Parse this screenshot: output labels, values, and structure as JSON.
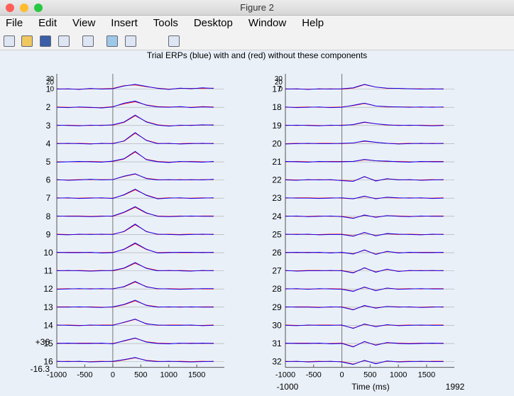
{
  "window": {
    "title": "Figure 2",
    "menu": [
      "File",
      "Edit",
      "View",
      "Insert",
      "Tools",
      "Desktop",
      "Window",
      "Help"
    ]
  },
  "chart_data": {
    "type": "line",
    "title": "Trial ERPs (blue) with and (red) without these components",
    "xlabel": "Time (ms)",
    "x": [
      -1000,
      -800,
      -600,
      -400,
      -200,
      0,
      200,
      400,
      600,
      800,
      1000,
      1200,
      1400,
      1600,
      1800
    ],
    "xlim": [
      -1000,
      1992
    ],
    "xticks": [
      -1000,
      -500,
      0,
      500,
      1000,
      1500
    ],
    "ylim": [
      -16.3,
      {
        "value": 36,
        "label": "+36"
      }
    ],
    "row_yticks": [
      30,
      20,
      0
    ],
    "series_colors": [
      "#0000ff",
      "#ff0000"
    ],
    "channels": [
      {
        "label": "1",
        "values": [
          [
            0,
            1,
            -1,
            2,
            0,
            1,
            9,
            14,
            8,
            2,
            -1,
            3,
            1,
            4,
            2
          ],
          [
            1,
            0,
            0,
            1,
            1,
            2,
            10,
            12,
            7,
            3,
            0,
            2,
            2,
            2,
            3
          ]
        ]
      },
      {
        "label": "2",
        "values": [
          [
            0,
            -1,
            1,
            0,
            -2,
            1,
            12,
            18,
            6,
            1,
            0,
            2,
            -1,
            1,
            0
          ],
          [
            1,
            0,
            0,
            -1,
            -1,
            2,
            10,
            16,
            7,
            2,
            1,
            1,
            0,
            2,
            1
          ]
        ]
      },
      {
        "label": "3",
        "values": [
          [
            1,
            0,
            -1,
            1,
            0,
            2,
            10,
            30,
            10,
            1,
            -2,
            1,
            0,
            2,
            1
          ],
          [
            0,
            1,
            0,
            0,
            1,
            1,
            9,
            28,
            11,
            2,
            -1,
            0,
            1,
            1,
            2
          ]
        ]
      },
      {
        "label": "4",
        "values": [
          [
            0,
            1,
            0,
            -1,
            1,
            0,
            8,
            32,
            9,
            0,
            1,
            -1,
            0,
            1,
            0
          ],
          [
            1,
            0,
            1,
            0,
            0,
            1,
            7,
            30,
            10,
            1,
            0,
            0,
            1,
            0,
            1
          ]
        ]
      },
      {
        "label": "5",
        "values": [
          [
            -1,
            0,
            1,
            0,
            -1,
            2,
            9,
            30,
            6,
            0,
            -2,
            1,
            0,
            -1,
            1
          ],
          [
            0,
            0,
            0,
            1,
            0,
            1,
            8,
            28,
            7,
            1,
            -1,
            0,
            1,
            0,
            0
          ]
        ]
      },
      {
        "label": "6",
        "values": [
          [
            1,
            -1,
            0,
            2,
            0,
            1,
            11,
            18,
            4,
            0,
            1,
            0,
            1,
            0,
            2
          ],
          [
            0,
            0,
            1,
            1,
            1,
            1,
            10,
            17,
            5,
            1,
            0,
            1,
            0,
            1,
            1
          ]
        ]
      },
      {
        "label": "7",
        "values": [
          [
            0,
            1,
            -1,
            0,
            1,
            -1,
            10,
            26,
            8,
            -2,
            0,
            1,
            -1,
            0,
            1
          ],
          [
            1,
            0,
            0,
            1,
            0,
            0,
            9,
            24,
            9,
            -1,
            1,
            0,
            0,
            1,
            0
          ]
        ]
      },
      {
        "label": "8",
        "values": [
          [
            1,
            0,
            0,
            -1,
            0,
            1,
            12,
            28,
            10,
            0,
            -1,
            0,
            1,
            0,
            0
          ],
          [
            0,
            1,
            1,
            0,
            1,
            0,
            11,
            26,
            9,
            1,
            0,
            1,
            0,
            1,
            1
          ]
        ]
      },
      {
        "label": "9",
        "values": [
          [
            0,
            -1,
            1,
            0,
            1,
            0,
            9,
            30,
            8,
            1,
            0,
            -1,
            0,
            1,
            0
          ],
          [
            1,
            0,
            0,
            1,
            0,
            1,
            8,
            28,
            9,
            0,
            1,
            0,
            1,
            0,
            1
          ]
        ]
      },
      {
        "label": "10",
        "values": [
          [
            1,
            0,
            0,
            1,
            -1,
            0,
            10,
            28,
            10,
            -1,
            0,
            1,
            1,
            0,
            1
          ],
          [
            0,
            1,
            1,
            0,
            0,
            1,
            9,
            26,
            9,
            0,
            1,
            0,
            0,
            1,
            0
          ]
        ]
      },
      {
        "label": "11",
        "values": [
          [
            0,
            1,
            0,
            -1,
            0,
            1,
            8,
            24,
            7,
            0,
            1,
            0,
            -1,
            1,
            0
          ],
          [
            1,
            0,
            1,
            0,
            1,
            0,
            7,
            22,
            8,
            1,
            0,
            1,
            0,
            0,
            1
          ]
        ]
      },
      {
        "label": "12",
        "values": [
          [
            -1,
            0,
            1,
            0,
            1,
            0,
            7,
            22,
            6,
            1,
            0,
            -1,
            0,
            1,
            1
          ],
          [
            0,
            1,
            0,
            1,
            0,
            1,
            6,
            20,
            7,
            0,
            1,
            0,
            1,
            0,
            0
          ]
        ]
      },
      {
        "label": "13",
        "values": [
          [
            0,
            0,
            1,
            0,
            -1,
            1,
            8,
            20,
            5,
            0,
            1,
            0,
            1,
            0,
            0
          ],
          [
            1,
            1,
            0,
            1,
            0,
            0,
            7,
            18,
            6,
            1,
            0,
            1,
            0,
            1,
            1
          ]
        ]
      },
      {
        "label": "14",
        "values": [
          [
            1,
            0,
            -1,
            1,
            0,
            0,
            9,
            18,
            4,
            1,
            0,
            0,
            1,
            -1,
            0
          ],
          [
            0,
            1,
            0,
            0,
            1,
            1,
            8,
            17,
            5,
            0,
            1,
            1,
            0,
            0,
            1
          ]
        ]
      },
      {
        "label": "15",
        "values": [
          [
            0,
            1,
            0,
            0,
            1,
            -1,
            8,
            16,
            4,
            0,
            -1,
            1,
            0,
            1,
            0
          ],
          [
            1,
            0,
            1,
            1,
            0,
            0,
            7,
            15,
            5,
            1,
            0,
            0,
            1,
            0,
            1
          ]
        ]
      },
      {
        "label": "16",
        "values": [
          [
            1,
            0,
            1,
            -1,
            0,
            1,
            6,
            12,
            3,
            0,
            1,
            0,
            -1,
            0,
            1
          ],
          [
            0,
            1,
            0,
            0,
            1,
            0,
            5,
            11,
            4,
            1,
            0,
            1,
            0,
            1,
            0
          ]
        ]
      },
      {
        "label": "17",
        "values": [
          [
            0,
            1,
            -1,
            1,
            0,
            1,
            4,
            14,
            6,
            3,
            2,
            1,
            0,
            1,
            0
          ],
          [
            1,
            0,
            0,
            0,
            1,
            0,
            3,
            13,
            6,
            2,
            2,
            1,
            1,
            0,
            1
          ]
        ]
      },
      {
        "label": "18",
        "values": [
          [
            1,
            -1,
            0,
            1,
            -1,
            0,
            6,
            12,
            4,
            2,
            1,
            0,
            1,
            0,
            1
          ],
          [
            0,
            0,
            1,
            0,
            0,
            1,
            5,
            11,
            4,
            1,
            1,
            1,
            0,
            1,
            0
          ]
        ]
      },
      {
        "label": "19",
        "values": [
          [
            0,
            1,
            0,
            -1,
            1,
            0,
            3,
            10,
            5,
            2,
            0,
            1,
            0,
            -1,
            0
          ],
          [
            1,
            0,
            1,
            0,
            0,
            1,
            2,
            9,
            5,
            1,
            1,
            0,
            1,
            0,
            1
          ]
        ]
      },
      {
        "label": "20",
        "values": [
          [
            -1,
            0,
            1,
            0,
            0,
            1,
            2,
            8,
            4,
            1,
            -1,
            0,
            1,
            0,
            1
          ],
          [
            0,
            1,
            0,
            1,
            1,
            0,
            2,
            7,
            4,
            1,
            0,
            1,
            0,
            1,
            0
          ]
        ]
      },
      {
        "label": "21",
        "values": [
          [
            1,
            0,
            -1,
            1,
            0,
            0,
            1,
            7,
            3,
            2,
            0,
            -1,
            1,
            0,
            0
          ],
          [
            0,
            1,
            0,
            0,
            1,
            1,
            1,
            6,
            3,
            1,
            1,
            0,
            0,
            1,
            1
          ]
        ]
      },
      {
        "label": "22",
        "values": [
          [
            0,
            -1,
            1,
            0,
            1,
            -2,
            -4,
            10,
            -3,
            4,
            0,
            1,
            -1,
            0,
            1
          ],
          [
            1,
            0,
            0,
            1,
            0,
            -1,
            -3,
            9,
            -2,
            3,
            1,
            0,
            0,
            1,
            0
          ]
        ]
      },
      {
        "label": "23",
        "values": [
          [
            1,
            0,
            0,
            -1,
            0,
            1,
            -2,
            6,
            -2,
            3,
            1,
            0,
            1,
            -1,
            0
          ],
          [
            0,
            1,
            1,
            0,
            1,
            0,
            -2,
            5,
            -1,
            2,
            0,
            1,
            0,
            0,
            1
          ]
        ]
      },
      {
        "label": "24",
        "values": [
          [
            0,
            1,
            -1,
            0,
            1,
            -1,
            -6,
            4,
            -3,
            2,
            0,
            -1,
            1,
            0,
            0
          ],
          [
            1,
            0,
            0,
            1,
            0,
            0,
            -5,
            3,
            -2,
            2,
            1,
            0,
            0,
            1,
            1
          ]
        ]
      },
      {
        "label": "25",
        "values": [
          [
            1,
            0,
            1,
            -1,
            0,
            0,
            -5,
            6,
            -4,
            3,
            1,
            0,
            -1,
            1,
            0
          ],
          [
            0,
            1,
            0,
            0,
            1,
            1,
            -4,
            5,
            -3,
            2,
            0,
            1,
            0,
            0,
            1
          ]
        ]
      },
      {
        "label": "26",
        "values": [
          [
            0,
            1,
            0,
            1,
            -1,
            1,
            -4,
            8,
            -5,
            4,
            -1,
            1,
            0,
            0,
            1
          ],
          [
            1,
            0,
            1,
            0,
            0,
            0,
            -3,
            7,
            -4,
            3,
            0,
            0,
            1,
            1,
            0
          ]
        ]
      },
      {
        "label": "27",
        "values": [
          [
            1,
            -1,
            0,
            0,
            1,
            0,
            -6,
            9,
            -4,
            5,
            -2,
            1,
            0,
            1,
            0
          ],
          [
            0,
            0,
            1,
            1,
            0,
            1,
            -5,
            8,
            -3,
            4,
            -1,
            0,
            1,
            0,
            1
          ]
        ]
      },
      {
        "label": "28",
        "values": [
          [
            0,
            1,
            -1,
            1,
            0,
            -1,
            -7,
            6,
            -5,
            3,
            -1,
            0,
            1,
            0,
            0
          ],
          [
            1,
            0,
            0,
            0,
            1,
            0,
            -6,
            5,
            -4,
            2,
            0,
            1,
            0,
            1,
            1
          ]
        ]
      },
      {
        "label": "29",
        "values": [
          [
            1,
            0,
            0,
            -1,
            1,
            0,
            -8,
            5,
            -3,
            2,
            0,
            1,
            -1,
            0,
            1
          ],
          [
            0,
            1,
            1,
            0,
            0,
            1,
            -7,
            4,
            -2,
            2,
            1,
            0,
            0,
            1,
            0
          ]
        ]
      },
      {
        "label": "30",
        "values": [
          [
            0,
            -1,
            1,
            0,
            0,
            1,
            -9,
            4,
            -4,
            2,
            -1,
            0,
            1,
            0,
            0
          ],
          [
            1,
            0,
            0,
            1,
            1,
            0,
            -8,
            3,
            -3,
            1,
            0,
            1,
            0,
            1,
            1
          ]
        ]
      },
      {
        "label": "31",
        "values": [
          [
            1,
            0,
            0,
            1,
            -1,
            0,
            -10,
            6,
            -5,
            3,
            0,
            -1,
            0,
            1,
            0
          ],
          [
            0,
            1,
            1,
            0,
            0,
            1,
            -9,
            5,
            -4,
            2,
            1,
            0,
            1,
            0,
            1
          ]
        ]
      },
      {
        "label": "32",
        "values": [
          [
            0,
            1,
            -1,
            0,
            1,
            -1,
            -8,
            4,
            -6,
            2,
            -1,
            0,
            1,
            0,
            0
          ],
          [
            1,
            0,
            0,
            1,
            0,
            0,
            -7,
            3,
            -5,
            1,
            0,
            1,
            0,
            1,
            1
          ]
        ]
      }
    ]
  }
}
